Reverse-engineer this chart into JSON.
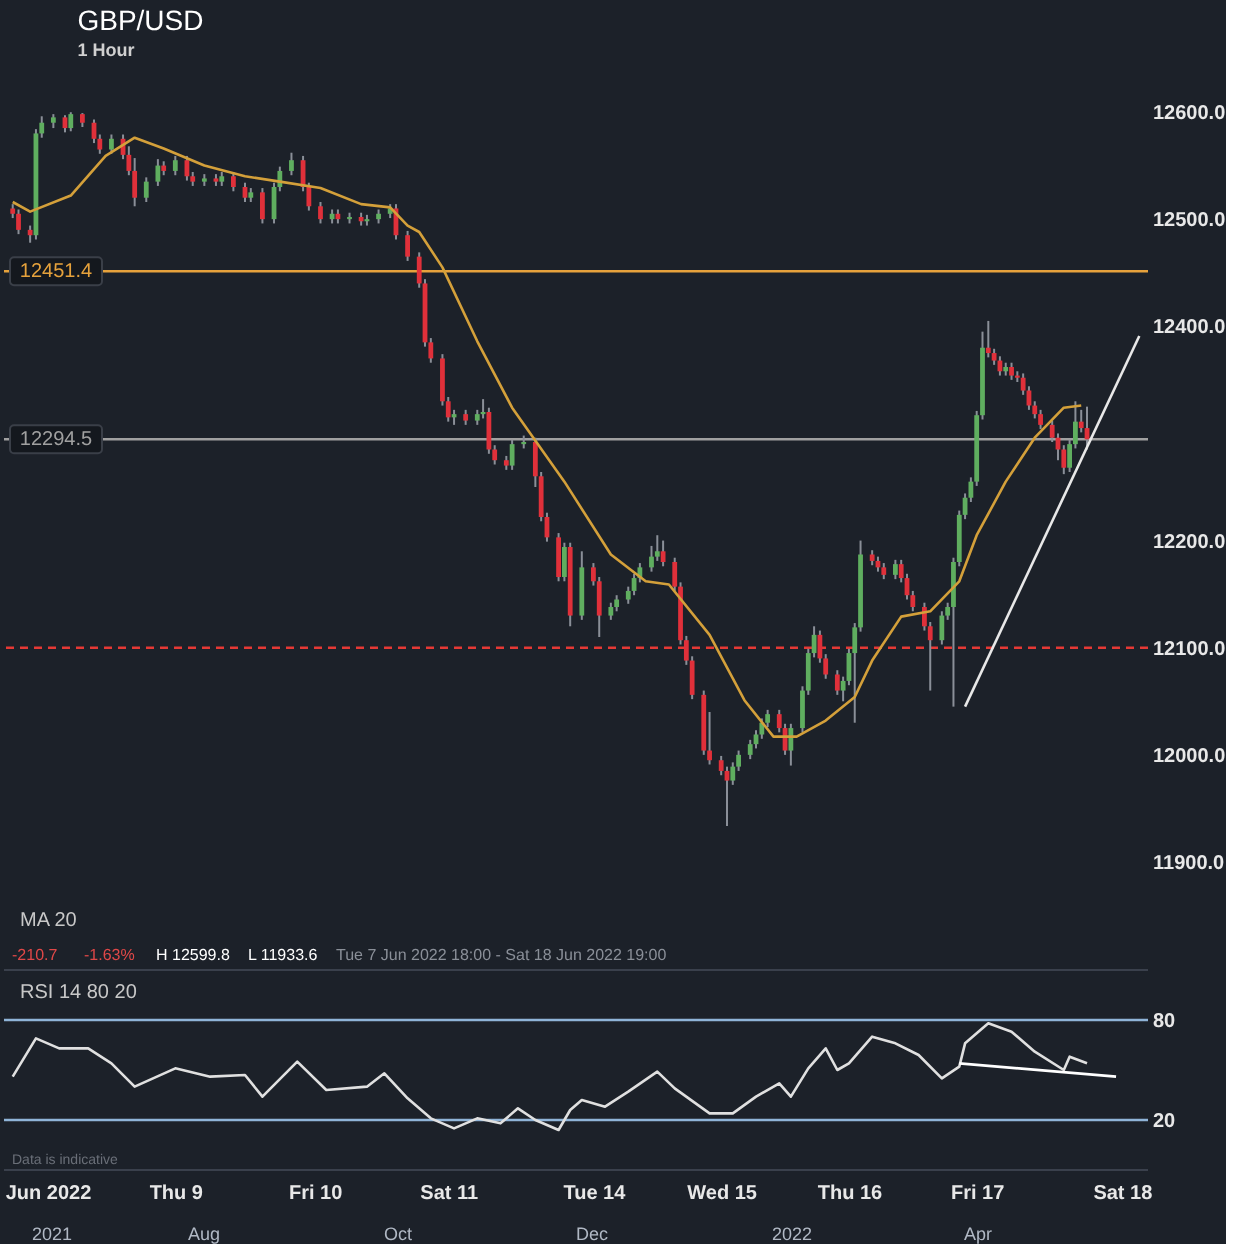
{
  "chart_data": [
    {
      "type": "candlestick",
      "title": "GBP/USD",
      "subtitle": "1 Hour",
      "categories": [
        null,
        null,
        null,
        null,
        null,
        null,
        null,
        null,
        null,
        null,
        null,
        null,
        null,
        null,
        null,
        null,
        null,
        null,
        null,
        null,
        null,
        null,
        null,
        null,
        null,
        null,
        null,
        null,
        null,
        null,
        null,
        null,
        null,
        null,
        null,
        null,
        null,
        null,
        null,
        null,
        null,
        null,
        null,
        null,
        null,
        null,
        null,
        null,
        null,
        null,
        null,
        null,
        null,
        null,
        null,
        null,
        null,
        null,
        null,
        null,
        null,
        null,
        null,
        null,
        null,
        null,
        null,
        null,
        null,
        null,
        null,
        null,
        null,
        null,
        null,
        null,
        null,
        null,
        null,
        null,
        null,
        null,
        null,
        null,
        null,
        null,
        null,
        null,
        null,
        null,
        null,
        null,
        null,
        null,
        null,
        null,
        null,
        null,
        null,
        null,
        null,
        null,
        null,
        null,
        null,
        null,
        null,
        null,
        null,
        null,
        null,
        null,
        null,
        null,
        null,
        null,
        null,
        null,
        null,
        null,
        null,
        null,
        null,
        null,
        null,
        null,
        null,
        null,
        null,
        null,
        null,
        null,
        null,
        null,
        null,
        null,
        null,
        null,
        null,
        null,
        null,
        null,
        null,
        null,
        null,
        null,
        null,
        null,
        null,
        null,
        null,
        null,
        null,
        null,
        null,
        null,
        null,
        null,
        null,
        null,
        null,
        null,
        null,
        null,
        null,
        null,
        null,
        null,
        null,
        null,
        null,
        null,
        null,
        null,
        null,
        null,
        null,
        null,
        null,
        null,
        null,
        null,
        null,
        null,
        null,
        null,
        null,
        null,
        null,
        null,
        null,
        null,
        null,
        null,
        null,
        null,
        null
      ],
      "ohlc": [
        null,
        [
          12510,
          12514,
          12501,
          12505
        ],
        [
          12505,
          12509,
          12486,
          12490
        ],
        null,
        [
          12490,
          12494,
          12478,
          12485
        ],
        [
          12485,
          12584,
          12481,
          12580
        ],
        [
          12580,
          12596,
          12576,
          12590
        ],
        null,
        [
          12590,
          12598,
          12585,
          12595
        ],
        null,
        [
          12595,
          12597,
          12581,
          12585
        ],
        [
          12585,
          12599.8,
          12582,
          12598
        ],
        null,
        [
          12598,
          12599,
          12586,
          12590
        ],
        null,
        [
          12590,
          12593,
          12571,
          12575
        ],
        [
          12575,
          12579,
          12561,
          12565
        ],
        null,
        [
          12565,
          12579,
          12561,
          12575
        ],
        null,
        [
          12575,
          12579,
          12556,
          12560
        ],
        [
          12560,
          12568,
          12541,
          12545
        ],
        [
          12545,
          12557,
          12512,
          12520
        ],
        null,
        [
          12520,
          12539,
          12516,
          12535
        ],
        null,
        [
          12535,
          12556,
          12531,
          12550
        ],
        [
          12550,
          12554,
          12541,
          12545
        ],
        null,
        [
          12545,
          12559,
          12541,
          12555
        ],
        null,
        [
          12555,
          12559,
          12536,
          12540
        ],
        [
          12540,
          12544,
          12531,
          12535
        ],
        null,
        [
          12535,
          12542,
          12531,
          12538
        ],
        null,
        [
          12538,
          12542,
          12531,
          12535
        ],
        [
          12535,
          12544,
          12531,
          12540
        ],
        null,
        [
          12540,
          12544,
          12526,
          12530
        ],
        null,
        [
          12530,
          12534,
          12516,
          12520
        ],
        [
          12520,
          12529,
          12516,
          12525
        ],
        null,
        [
          12525,
          12529,
          12496,
          12500
        ],
        null,
        [
          12500,
          12534,
          12496,
          12530
        ],
        [
          12530,
          12549,
          12526,
          12545
        ],
        null,
        [
          12545,
          12562,
          12541,
          12555
        ],
        null,
        [
          12555,
          12559,
          12526,
          12530
        ],
        [
          12530,
          12534,
          12508,
          12512
        ],
        null,
        [
          12512,
          12516,
          12496,
          12500
        ],
        null,
        [
          12500,
          12509,
          12496,
          12505
        ],
        [
          12505,
          12509,
          12496,
          12500
        ],
        null,
        [
          12500,
          12506,
          12496,
          12502
        ],
        null,
        [
          12502,
          12506,
          12494,
          12498
        ],
        [
          12498,
          12504,
          12494,
          12500
        ],
        null,
        [
          12500,
          12509,
          12496,
          12505
        ],
        null,
        [
          12505,
          12514,
          12501,
          12510
        ],
        [
          12510,
          12514,
          12481,
          12485
        ],
        null,
        [
          12485,
          12489,
          12461,
          12465
        ],
        null,
        [
          12465,
          12469,
          12436,
          12440
        ],
        [
          12440,
          12444,
          12381,
          12385
        ],
        [
          12385,
          12389,
          12366,
          12370
        ],
        null,
        [
          12370,
          12374,
          12326,
          12330
        ],
        [
          12330,
          12334,
          12311,
          12315
        ],
        [
          12315,
          12322,
          12308,
          12318
        ],
        null,
        [
          12318,
          12322,
          12308,
          12312
        ],
        null,
        [
          12312,
          12322,
          12308,
          12318
        ],
        [
          12318,
          12332,
          12314,
          12320
        ],
        [
          12320,
          12324,
          12281,
          12285
        ],
        [
          12285,
          12289,
          12271,
          12275
        ],
        null,
        [
          12275,
          12279,
          12266,
          12270
        ],
        [
          12270,
          12294,
          12266,
          12290
        ],
        null,
        [
          12290,
          12298,
          12286,
          12292
        ],
        null,
        [
          12292,
          12296,
          12250,
          12260
        ],
        [
          12260,
          12264,
          12218,
          12222
        ],
        [
          12222,
          12226,
          12199,
          12203
        ],
        null,
        [
          12203,
          12207,
          12162,
          12166
        ],
        [
          12166,
          12198,
          12162,
          12194
        ],
        [
          12194,
          12198,
          12120,
          12130
        ],
        null,
        [
          12130,
          12190,
          12126,
          12175
        ],
        null,
        [
          12175,
          12179,
          12158,
          12162
        ],
        [
          12162,
          12166,
          12110,
          12130
        ],
        null,
        [
          12130,
          12142,
          12126,
          12138
        ],
        [
          12138,
          12149,
          12134,
          12145
        ],
        null,
        [
          12145,
          12157,
          12141,
          12153
        ],
        [
          12153,
          12169,
          12149,
          12165
        ],
        [
          12165,
          12179,
          12161,
          12175
        ],
        null,
        [
          12175,
          12195,
          12171,
          12185
        ],
        [
          12185,
          12205,
          12181,
          12190
        ],
        [
          12190,
          12200,
          12176,
          12180
        ],
        null,
        [
          12180,
          12184,
          12153,
          12157
        ],
        [
          12157,
          12161,
          12103,
          12107
        ],
        [
          12107,
          12111,
          12084,
          12088
        ],
        [
          12088,
          12092,
          12052,
          12056
        ],
        null,
        [
          12056,
          12060,
          12000,
          12004
        ],
        [
          12004,
          12040,
          11991,
          11995
        ],
        null,
        [
          11995,
          11999,
          11981,
          11985
        ],
        [
          11985,
          11989,
          11933.6,
          11976
        ],
        [
          11976,
          11993,
          11972,
          11989
        ],
        [
          11989,
          12004,
          11985,
          12000
        ],
        null,
        [
          12000,
          12014,
          11996,
          12010
        ],
        [
          12010,
          12023,
          12006,
          12019
        ],
        [
          12019,
          12034,
          12015,
          12030
        ],
        [
          12030,
          12042,
          12026,
          12038
        ],
        null,
        [
          12038,
          12042,
          12021,
          12025
        ],
        [
          12025,
          12029,
          12000,
          12004
        ],
        [
          12004,
          12029,
          11990,
          12025
        ],
        null,
        [
          12025,
          12064,
          12021,
          12060
        ],
        [
          12060,
          12099,
          12056,
          12095
        ],
        [
          12095,
          12120,
          12091,
          12112
        ],
        [
          12112,
          12116,
          12086,
          12090
        ],
        [
          12090,
          12094,
          12071,
          12075
        ],
        null,
        [
          12075,
          12079,
          12056,
          12060
        ],
        [
          12060,
          12073,
          12050,
          12069
        ],
        [
          12069,
          12099,
          12065,
          12095
        ],
        [
          12095,
          12123,
          12030,
          12119
        ],
        [
          12119,
          12200,
          12115,
          12187
        ],
        null,
        [
          12187,
          12191,
          12177,
          12181
        ],
        [
          12181,
          12185,
          12171,
          12175
        ],
        [
          12175,
          12179,
          12164,
          12168
        ],
        null,
        [
          12168,
          12182,
          12164,
          12178
        ],
        [
          12178,
          12182,
          12161,
          12165
        ],
        [
          12165,
          12169,
          12145,
          12149
        ],
        [
          12149,
          12153,
          12134,
          12138
        ],
        null,
        [
          12138,
          12142,
          12116,
          12120
        ],
        [
          12120,
          12124,
          12060,
          12107
        ],
        null,
        [
          12107,
          12134,
          12103,
          12130
        ],
        [
          12130,
          12142,
          12126,
          12138
        ],
        [
          12138,
          12184,
          12045,
          12180
        ],
        [
          12180,
          12228,
          12176,
          12224
        ],
        [
          12224,
          12244,
          12220,
          12240
        ],
        [
          12240,
          12259,
          12236,
          12255
        ],
        [
          12255,
          12321,
          12251,
          12317
        ],
        [
          12317,
          12395,
          12313,
          12380
        ],
        [
          12380,
          12405,
          12371,
          12375
        ],
        [
          12375,
          12379,
          12364,
          12368
        ],
        [
          12368,
          12372,
          12354,
          12358
        ],
        [
          12358,
          12366,
          12354,
          12362
        ],
        [
          12362,
          12366,
          12350,
          12354
        ],
        [
          12354,
          12358,
          12348,
          12352
        ],
        [
          12352,
          12356,
          12336,
          12340
        ],
        [
          12340,
          12344,
          12322,
          12326
        ],
        [
          12326,
          12330,
          12314,
          12318
        ],
        [
          12318,
          12322,
          12304,
          12308
        ],
        null,
        [
          12308,
          12312,
          12292,
          12296
        ],
        [
          12296,
          12300,
          12275,
          12285
        ],
        [
          12285,
          12289,
          12262,
          12268
        ],
        [
          12268,
          12294,
          12264,
          12290
        ],
        [
          12290,
          12330,
          12286,
          12311
        ],
        [
          12311,
          12322,
          12301,
          12305
        ],
        [
          12305,
          12325,
          12285,
          12294.5
        ],
        null,
        null,
        null,
        null,
        null,
        null,
        null,
        null,
        null,
        null
      ],
      "series": [
        {
          "type": "line",
          "color": "#d4a03a",
          "values": [
            null,
            12516,
            null,
            null,
            12507,
            null,
            null,
            null,
            null,
            null,
            null,
            12522,
            null,
            null,
            null,
            null,
            null,
            12559,
            null,
            null,
            null,
            null,
            12576,
            null,
            null,
            null,
            null,
            12566,
            null,
            null,
            null,
            null,
            null,
            null,
            12550,
            null,
            null,
            null,
            null,
            null,
            null,
            12540,
            null,
            null,
            null,
            null,
            null,
            12535,
            null,
            null,
            null,
            null,
            null,
            null,
            12529,
            null,
            null,
            null,
            null,
            null,
            null,
            12514,
            null,
            null,
            null,
            null,
            12511,
            null,
            null,
            12494,
            null,
            12488,
            null,
            null,
            null,
            12455,
            null,
            null,
            null,
            null,
            null,
            12386,
            null,
            null,
            null,
            null,
            null,
            12324,
            null,
            null,
            null,
            null,
            null,
            null,
            null,
            null,
            12255,
            null,
            null,
            null,
            null,
            null,
            null,
            null,
            12187,
            null,
            null,
            null,
            null,
            null,
            12162,
            null,
            null,
            null,
            12159,
            null,
            null,
            null,
            null,
            null,
            null,
            12112,
            null,
            null,
            null,
            null,
            null,
            12051,
            null,
            null,
            null,
            null,
            12017,
            null,
            null,
            null,
            12017,
            null,
            null,
            null,
            null,
            12032,
            null,
            null,
            null,
            null,
            12054,
            null,
            null,
            12088,
            null,
            null,
            null,
            null,
            12129,
            null,
            null,
            null,
            null,
            12134,
            null,
            null,
            null,
            null,
            12162,
            null,
            null,
            12205,
            null,
            null,
            null,
            null,
            12255,
            null,
            null,
            null,
            null,
            12296,
            null,
            null,
            null,
            null,
            12324,
            null,
            null,
            12326,
            null,
            null,
            null,
            null,
            null,
            null,
            null,
            null,
            null,
            null,
            null
          ]
        },
        {
          "type": "line",
          "color": "#e8e8e8",
          "values": [
            null,
            null,
            null,
            null,
            null,
            null,
            null,
            null,
            null,
            null,
            null,
            null,
            null,
            null,
            null,
            null,
            null,
            null,
            null,
            null,
            null,
            null,
            null,
            null,
            null,
            null,
            null,
            null,
            null,
            null,
            null,
            null,
            null,
            null,
            null,
            null,
            null,
            null,
            null,
            null,
            null,
            null,
            null,
            null,
            null,
            null,
            null,
            null,
            null,
            null,
            null,
            null,
            null,
            null,
            null,
            null,
            null,
            null,
            null,
            null,
            null,
            null,
            null,
            null,
            null,
            null,
            null,
            null,
            null,
            null,
            null,
            null,
            null,
            null,
            null,
            null,
            null,
            null,
            null,
            null,
            null,
            null,
            null,
            null,
            null,
            null,
            null,
            null,
            null,
            null,
            null,
            null,
            null,
            null,
            null,
            null,
            null,
            null,
            null,
            null,
            null,
            null,
            null,
            null,
            null,
            null,
            null,
            null,
            null,
            null,
            null,
            null,
            null,
            null,
            null,
            null,
            null,
            null,
            null,
            null,
            null,
            null,
            null,
            null,
            null,
            null,
            null,
            null,
            null,
            null,
            null,
            null,
            null,
            null,
            null,
            null,
            null,
            null,
            null,
            null,
            null,
            null,
            null,
            null,
            null,
            null,
            null,
            null,
            null,
            null,
            null,
            null,
            null,
            null,
            null,
            null,
            null,
            null,
            null,
            null,
            null,
            null,
            null,
            null,
            null,
            12045,
            null,
            null,
            null,
            null,
            null,
            null,
            null,
            null,
            null,
            null,
            null,
            null,
            null,
            null,
            null,
            null,
            null,
            null,
            null,
            null,
            null,
            null,
            null,
            null,
            null,
            null,
            null,
            null,
            null,
            12391,
            null
          ]
        }
      ],
      "ref_lines": [
        {
          "axis": "y",
          "value": 12451.4,
          "label": "12451.4",
          "color": "#e6a23c"
        },
        {
          "axis": "y",
          "value": 12294.5,
          "label": "12294.5",
          "color": "#a0a0a0"
        },
        {
          "axis": "y",
          "value": 12100,
          "color": "#e53935",
          "line_style": "dashed"
        }
      ],
      "ylim": [
        11900,
        12600
      ],
      "yticks": [
        {
          "value": 11900,
          "label": "11900.0"
        },
        {
          "value": 12000,
          "label": "12000.0"
        },
        {
          "value": 12100,
          "label": "12100.0"
        },
        {
          "value": 12200,
          "label": "12200.0"
        },
        {
          "value": 12400,
          "label": "12400.0"
        },
        {
          "value": 12500,
          "label": "12500.0"
        },
        {
          "value": 12600,
          "label": "12600.0"
        }
      ],
      "tick_labels": "y",
      "annotations": [
        "MA 20",
        "-210.7",
        "-1.63%",
        "H 12599.8",
        "L 11933.6",
        "Tue 7 Jun 2022 18:00 - Sat 18 Jun 2022 19:00"
      ]
    },
    {
      "type": "line",
      "categories": [
        null,
        null,
        null,
        null,
        null,
        null,
        null,
        "Jun 2022",
        null,
        null,
        null,
        null,
        null,
        null,
        null,
        null,
        null,
        null,
        null,
        null,
        null,
        null,
        null,
        null,
        null,
        null,
        null,
        null,
        null,
        "Thu 9",
        null,
        null,
        null,
        null,
        null,
        null,
        null,
        null,
        null,
        null,
        null,
        null,
        null,
        null,
        null,
        null,
        null,
        null,
        null,
        null,
        null,
        null,
        null,
        "Fri 10",
        null,
        null,
        null,
        null,
        null,
        null,
        null,
        null,
        null,
        null,
        null,
        null,
        null,
        null,
        null,
        null,
        null,
        null,
        null,
        null,
        null,
        null,
        "Sat 11",
        null,
        null,
        null,
        null,
        null,
        null,
        null,
        null,
        null,
        null,
        null,
        null,
        null,
        null,
        null,
        null,
        null,
        null,
        null,
        null,
        null,
        null,
        null,
        null,
        "Tue 14",
        null,
        null,
        null,
        null,
        null,
        null,
        null,
        null,
        null,
        null,
        null,
        null,
        null,
        null,
        null,
        null,
        null,
        null,
        null,
        null,
        null,
        "Wed 15",
        null,
        null,
        null,
        null,
        null,
        null,
        null,
        null,
        null,
        null,
        null,
        null,
        null,
        null,
        null,
        null,
        null,
        null,
        null,
        null,
        null,
        "Thu 16",
        null,
        null,
        null,
        null,
        null,
        null,
        null,
        null,
        null,
        null,
        null,
        null,
        null,
        null,
        null,
        null,
        null,
        null,
        null,
        null,
        null,
        "Fri 17",
        null,
        null,
        null,
        null,
        null,
        null,
        null,
        null,
        null,
        null,
        null,
        null,
        null,
        null,
        null,
        null,
        null,
        null,
        null,
        null,
        null,
        null,
        null,
        null,
        "Sat 18",
        null,
        null,
        null,
        null
      ],
      "series": [
        {
          "color": "#e0e0e0",
          "values": [
            null,
            46,
            null,
            null,
            null,
            69,
            null,
            null,
            null,
            63,
            null,
            null,
            null,
            null,
            63,
            null,
            null,
            null,
            54,
            null,
            null,
            null,
            40,
            null,
            null,
            null,
            null,
            null,
            null,
            51,
            null,
            null,
            null,
            null,
            null,
            46,
            null,
            null,
            null,
            null,
            null,
            47,
            null,
            null,
            34,
            null,
            null,
            null,
            null,
            null,
            55,
            null,
            null,
            null,
            null,
            38,
            null,
            null,
            null,
            null,
            null,
            null,
            40,
            null,
            null,
            48,
            null,
            null,
            null,
            33,
            null,
            null,
            null,
            21,
            null,
            null,
            null,
            15,
            null,
            null,
            null,
            21,
            null,
            null,
            null,
            18,
            null,
            null,
            27,
            null,
            null,
            20,
            null,
            null,
            null,
            14,
            null,
            26,
            null,
            32,
            null,
            null,
            null,
            28,
            null,
            null,
            null,
            37,
            null,
            null,
            null,
            null,
            49,
            null,
            null,
            39,
            null,
            null,
            null,
            null,
            null,
            24,
            null,
            null,
            null,
            24,
            null,
            null,
            null,
            34,
            null,
            null,
            null,
            42,
            null,
            34,
            null,
            null,
            51,
            null,
            null,
            63,
            null,
            50,
            null,
            54,
            null,
            null,
            null,
            70,
            null,
            null,
            null,
            66,
            null,
            null,
            null,
            59,
            null,
            null,
            null,
            45,
            null,
            null,
            52,
            66,
            null,
            null,
            null,
            78,
            null,
            null,
            null,
            73,
            null,
            null,
            null,
            61,
            null,
            null,
            null,
            null,
            50,
            58,
            null,
            null,
            54,
            null,
            null,
            null,
            null,
            null,
            null,
            null,
            null,
            null,
            null
          ]
        },
        {
          "color": "#ffffff",
          "values": [
            null,
            null,
            null,
            null,
            null,
            null,
            null,
            null,
            null,
            null,
            null,
            null,
            null,
            null,
            null,
            null,
            null,
            null,
            null,
            null,
            null,
            null,
            null,
            null,
            null,
            null,
            null,
            null,
            null,
            null,
            null,
            null,
            null,
            null,
            null,
            null,
            null,
            null,
            null,
            null,
            null,
            null,
            null,
            null,
            null,
            null,
            null,
            null,
            null,
            null,
            null,
            null,
            null,
            null,
            null,
            null,
            null,
            null,
            null,
            null,
            null,
            null,
            null,
            null,
            null,
            null,
            null,
            null,
            null,
            null,
            null,
            null,
            null,
            null,
            null,
            null,
            null,
            null,
            null,
            null,
            null,
            null,
            null,
            null,
            null,
            null,
            null,
            null,
            null,
            null,
            null,
            null,
            null,
            null,
            null,
            null,
            null,
            null,
            null,
            null,
            null,
            null,
            null,
            null,
            null,
            null,
            null,
            null,
            null,
            null,
            null,
            null,
            null,
            null,
            null,
            null,
            null,
            null,
            null,
            null,
            null,
            null,
            null,
            null,
            null,
            null,
            null,
            null,
            null,
            null,
            null,
            null,
            null,
            null,
            null,
            null,
            null,
            null,
            null,
            null,
            null,
            null,
            null,
            null,
            null,
            null,
            null,
            null,
            null,
            null,
            null,
            null,
            null,
            null,
            null,
            null,
            null,
            null,
            null,
            null,
            null,
            null,
            null,
            null,
            54,
            null,
            null,
            null,
            null,
            null,
            null,
            null,
            null,
            null,
            null,
            null,
            null,
            null,
            null,
            null,
            null,
            null,
            null,
            null,
            null,
            null,
            null,
            null,
            null,
            null,
            null,
            46,
            null,
            null,
            null,
            null,
            null
          ]
        }
      ],
      "ref_lines": [
        {
          "axis": "y",
          "value": 80,
          "color": "#8fb4d8"
        },
        {
          "axis": "y",
          "value": 20,
          "color": "#8fb4d8"
        }
      ],
      "ylim": [
        -10,
        110
      ],
      "yticks": [
        20,
        80
      ],
      "annotations": [
        "RSI 14 80 20",
        "Data is indicative",
        "2021",
        "Aug",
        "Oct",
        "Dec",
        "2022",
        "Apr"
      ]
    }
  ]
}
